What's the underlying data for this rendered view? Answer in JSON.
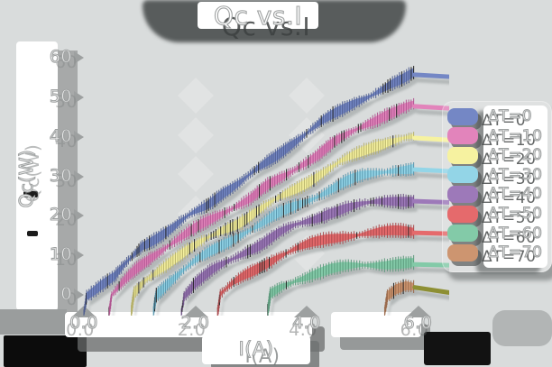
{
  "title": "Qc vs.I",
  "colors": {
    "background": "#d9dcdc",
    "band_shadow": "#8e9494",
    "text_fill": "#ffffff",
    "text_outline": "#9fa2a2",
    "dark_shadow": "#454848",
    "paper": "#ffffff"
  },
  "chart_data": {
    "type": "line",
    "title": "Qc vs.I",
    "xlabel": "I(A)",
    "ylabel": "Qc(W)",
    "xlim": [
      -0.3,
      6.55
    ],
    "ylim": [
      -4.5,
      62
    ],
    "xticks": [
      0.0,
      2.0,
      4.0,
      6.0
    ],
    "xtick_labels": [
      "0.0",
      "2.0",
      "4.0",
      "6.0"
    ],
    "yticks": [
      0,
      10,
      20,
      30,
      40,
      50,
      60
    ],
    "ytick_labels": [
      "0",
      "10",
      "20",
      "30",
      "40",
      "50",
      "60"
    ],
    "grid": false,
    "legend_position": "right",
    "series": [
      {
        "name": "ΔT=0",
        "color": "#7487c5",
        "hatch_color": "#4e5c8e",
        "points": [
          [
            0.0,
            -4.5
          ],
          [
            0.05,
            0
          ],
          [
            0.3,
            2.5
          ],
          [
            0.55,
            4.5
          ],
          [
            0.8,
            8.5
          ],
          [
            1.05,
            12.5
          ],
          [
            1.3,
            14.5
          ],
          [
            1.6,
            17
          ],
          [
            1.9,
            20
          ],
          [
            2.2,
            22.5
          ],
          [
            2.5,
            26
          ],
          [
            2.8,
            28.5
          ],
          [
            3.1,
            31.5
          ],
          [
            3.4,
            34.5
          ],
          [
            3.7,
            38
          ],
          [
            4.0,
            41
          ],
          [
            4.3,
            44
          ],
          [
            4.6,
            46.5
          ],
          [
            4.9,
            49
          ],
          [
            5.2,
            51
          ],
          [
            5.5,
            53
          ],
          [
            5.75,
            54.5
          ],
          [
            5.92,
            56
          ]
        ],
        "cap_end_qc": 55.2
      },
      {
        "name": "ΔT=10",
        "color": "#e284bb",
        "hatch_color": "#b05590",
        "points": [
          [
            0.45,
            -4.5
          ],
          [
            0.5,
            0
          ],
          [
            0.7,
            3
          ],
          [
            0.95,
            6.5
          ],
          [
            1.2,
            9.5
          ],
          [
            1.5,
            12.5
          ],
          [
            1.8,
            15
          ],
          [
            2.1,
            17.5
          ],
          [
            2.4,
            20
          ],
          [
            2.7,
            22.5
          ],
          [
            3.0,
            24.5
          ],
          [
            3.3,
            27.5
          ],
          [
            3.6,
            30
          ],
          [
            3.9,
            33
          ],
          [
            4.2,
            35.5
          ],
          [
            4.5,
            38.5
          ],
          [
            4.8,
            41
          ],
          [
            5.1,
            43.5
          ],
          [
            5.4,
            45.5
          ],
          [
            5.7,
            47
          ],
          [
            5.92,
            48
          ]
        ],
        "cap_end_qc": 47.2
      },
      {
        "name": "ΔT=20",
        "color": "#f6f2a0",
        "hatch_color": "#b5b068",
        "points": [
          [
            0.85,
            -4.5
          ],
          [
            0.9,
            0
          ],
          [
            1.1,
            3.5
          ],
          [
            1.35,
            6.5
          ],
          [
            1.6,
            9
          ],
          [
            1.9,
            11.5
          ],
          [
            2.2,
            14
          ],
          [
            2.5,
            16.5
          ],
          [
            2.8,
            18.5
          ],
          [
            3.1,
            21
          ],
          [
            3.4,
            23.5
          ],
          [
            3.7,
            26
          ],
          [
            4.0,
            28.5
          ],
          [
            4.3,
            31
          ],
          [
            4.6,
            33.5
          ],
          [
            4.9,
            35.5
          ],
          [
            5.2,
            37.5
          ],
          [
            5.5,
            39
          ],
          [
            5.75,
            39.8
          ],
          [
            5.92,
            40
          ]
        ],
        "cap_end_qc": 39.2
      },
      {
        "name": "ΔT=30",
        "color": "#93d5e7",
        "hatch_color": "#5795ad",
        "points": [
          [
            1.25,
            -4.5
          ],
          [
            1.3,
            0
          ],
          [
            1.5,
            3
          ],
          [
            1.75,
            6
          ],
          [
            2.0,
            8.5
          ],
          [
            2.3,
            11
          ],
          [
            2.6,
            13.5
          ],
          [
            2.9,
            16
          ],
          [
            3.2,
            18
          ],
          [
            3.5,
            20.5
          ],
          [
            3.8,
            22.5
          ],
          [
            4.1,
            24.5
          ],
          [
            4.4,
            26.5
          ],
          [
            4.7,
            28.5
          ],
          [
            5.0,
            30
          ],
          [
            5.3,
            31
          ],
          [
            5.6,
            31.8
          ],
          [
            5.92,
            32
          ]
        ],
        "cap_end_qc": 31.3
      },
      {
        "name": "ΔT=40",
        "color": "#9d79b9",
        "hatch_color": "#6d5185",
        "points": [
          [
            1.75,
            -4.5
          ],
          [
            1.8,
            0
          ],
          [
            2.0,
            3
          ],
          [
            2.3,
            6
          ],
          [
            2.6,
            8.5
          ],
          [
            2.9,
            11
          ],
          [
            3.2,
            13
          ],
          [
            3.5,
            15.5
          ],
          [
            3.8,
            17.5
          ],
          [
            4.1,
            19
          ],
          [
            4.4,
            20.8
          ],
          [
            4.7,
            22
          ],
          [
            5.0,
            22.8
          ],
          [
            5.3,
            23.4
          ],
          [
            5.6,
            23.8
          ],
          [
            5.92,
            24
          ]
        ],
        "cap_end_qc": 23.4
      },
      {
        "name": "ΔT=50",
        "color": "#e56a6c",
        "hatch_color": "#a84a4d",
        "points": [
          [
            2.4,
            -4.5
          ],
          [
            2.45,
            0
          ],
          [
            2.65,
            2.5
          ],
          [
            2.9,
            5
          ],
          [
            3.2,
            7.5
          ],
          [
            3.5,
            9.8
          ],
          [
            3.8,
            11.5
          ],
          [
            4.1,
            13
          ],
          [
            4.4,
            14.2
          ],
          [
            4.7,
            15
          ],
          [
            5.0,
            15.5
          ],
          [
            5.3,
            15.8
          ],
          [
            5.6,
            16
          ],
          [
            5.92,
            16
          ]
        ],
        "cap_end_qc": 15.5
      },
      {
        "name": "ΔT=60",
        "color": "#83caa8",
        "hatch_color": "#5c9a7c",
        "points": [
          [
            3.3,
            -4.5
          ],
          [
            3.35,
            0
          ],
          [
            3.55,
            2
          ],
          [
            3.8,
            3.8
          ],
          [
            4.1,
            5.2
          ],
          [
            4.4,
            6.3
          ],
          [
            4.7,
            7
          ],
          [
            5.0,
            7.5
          ],
          [
            5.3,
            7.8
          ],
          [
            5.6,
            8
          ],
          [
            5.92,
            8
          ]
        ],
        "cap_end_qc": 7.5
      },
      {
        "name": "ΔT=70",
        "color": "#cd9570",
        "hatch_color": "#9a6a4c",
        "points": [
          [
            5.4,
            -4.5
          ],
          [
            5.45,
            0
          ],
          [
            5.6,
            1.8
          ],
          [
            5.78,
            2.6
          ],
          [
            5.92,
            2.2
          ]
        ],
        "cap_end_qc": 0.6,
        "cap_color": "#8d8f33"
      }
    ]
  }
}
